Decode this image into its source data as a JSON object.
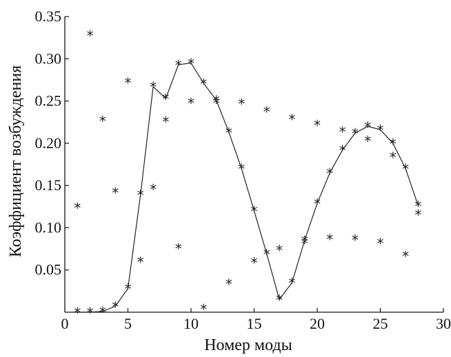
{
  "chart_data": {
    "type": "scatter",
    "title": "",
    "xlabel": "Номер моды",
    "ylabel": "Коэффициент возбуждения",
    "xlim": [
      0,
      30
    ],
    "ylim": [
      0,
      0.35
    ],
    "x_ticks": [
      "0",
      "5",
      "10",
      "15",
      "20",
      "25",
      "30"
    ],
    "y_ticks": [
      "0.05",
      "0.10",
      "0.15",
      "0.20",
      "0.25",
      "0.30",
      "0.35"
    ],
    "grid": false,
    "legend": "none",
    "marker": "*",
    "series": [
      {
        "style": "line-with-markers",
        "x": [
          1,
          2,
          3,
          4,
          5,
          6,
          7,
          8,
          9,
          10,
          11,
          12,
          13,
          14,
          15,
          16,
          17,
          18,
          19,
          20,
          21,
          22,
          23,
          24,
          25,
          26,
          27,
          28
        ],
        "y": [
          0.0,
          0.0,
          0.001,
          0.007,
          0.028,
          0.139,
          0.267,
          0.253,
          0.293,
          0.295,
          0.271,
          0.251,
          0.213,
          0.17,
          0.12,
          0.069,
          0.015,
          0.035,
          0.085,
          0.129,
          0.165,
          0.192,
          0.212,
          0.22,
          0.216,
          0.2,
          0.17,
          0.126
        ]
      },
      {
        "style": "markers",
        "x": [
          1,
          2,
          3,
          4,
          5,
          6,
          7,
          8,
          9,
          10,
          11,
          12,
          13,
          14,
          15,
          16,
          17,
          18,
          19,
          20,
          21,
          22,
          23,
          24,
          25,
          26,
          27,
          28
        ],
        "y": [
          0.124,
          0.328,
          0.227,
          0.142,
          0.272,
          0.06,
          0.146,
          0.226,
          0.076,
          0.248,
          0.004,
          0.248,
          0.034,
          0.247,
          0.059,
          0.238,
          0.074,
          0.229,
          0.082,
          0.222,
          0.087,
          0.214,
          0.086,
          0.203,
          0.082,
          0.184,
          0.067,
          0.116
        ]
      }
    ]
  }
}
